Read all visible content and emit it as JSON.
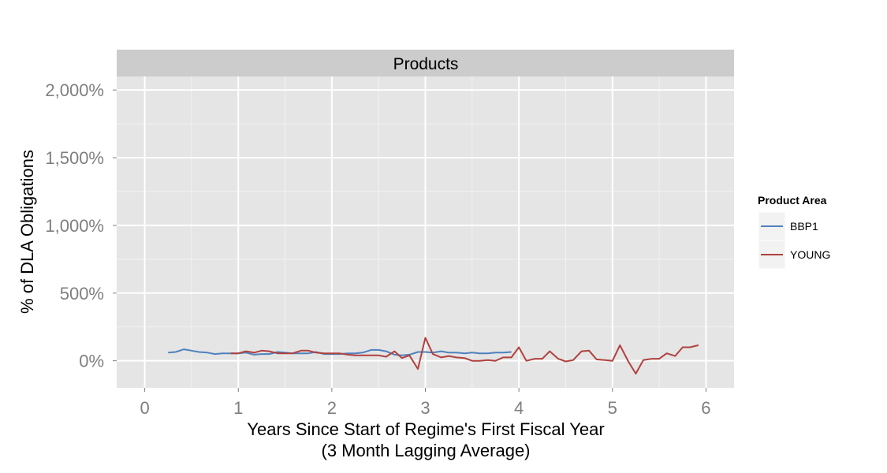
{
  "chart_data": {
    "type": "line",
    "facet_title": "Products",
    "xlabel_line1": "Years Since Start of Regime's First Fiscal Year",
    "xlabel_line2": "(3 Month Lagging Average)",
    "ylabel": "% of DLA Obligations",
    "xlim": [
      -0.3,
      6.3
    ],
    "ylim": [
      -200,
      2100
    ],
    "x_ticks": [
      0,
      1,
      2,
      3,
      4,
      5,
      6
    ],
    "x_tick_labels": [
      "0",
      "1",
      "2",
      "3",
      "4",
      "5",
      "6"
    ],
    "y_ticks": [
      0,
      500,
      1000,
      1500,
      2000
    ],
    "y_tick_labels": [
      "0%",
      "500%",
      "1,000%",
      "1,500%",
      "2,000%"
    ],
    "grid": true,
    "legend": {
      "title": "Product Area",
      "position": "right"
    },
    "series": [
      {
        "name": "BBP1",
        "color": "#4f81bd",
        "x": [
          0.25,
          0.33,
          0.42,
          0.5,
          0.58,
          0.67,
          0.75,
          0.83,
          0.92,
          1.0,
          1.08,
          1.17,
          1.25,
          1.33,
          1.42,
          1.5,
          1.58,
          1.67,
          1.75,
          1.83,
          1.92,
          2.0,
          2.08,
          2.17,
          2.25,
          2.33,
          2.42,
          2.5,
          2.58,
          2.67,
          2.75,
          2.83,
          2.92,
          3.0,
          3.08,
          3.17,
          3.25,
          3.33,
          3.42,
          3.5,
          3.58,
          3.67,
          3.75,
          3.83,
          3.92
        ],
        "y": [
          60,
          65,
          85,
          75,
          65,
          60,
          50,
          55,
          55,
          55,
          60,
          45,
          50,
          50,
          65,
          60,
          55,
          55,
          55,
          65,
          50,
          50,
          50,
          55,
          55,
          60,
          80,
          80,
          70,
          45,
          40,
          45,
          65,
          65,
          60,
          70,
          60,
          60,
          55,
          60,
          55,
          55,
          60,
          60,
          65
        ]
      },
      {
        "name": "YOUNG",
        "color": "#b0413e",
        "x": [
          0.92,
          1.0,
          1.08,
          1.17,
          1.25,
          1.33,
          1.42,
          1.5,
          1.58,
          1.67,
          1.75,
          1.83,
          1.92,
          2.0,
          2.08,
          2.17,
          2.25,
          2.33,
          2.42,
          2.5,
          2.58,
          2.67,
          2.75,
          2.83,
          2.92,
          3.0,
          3.08,
          3.17,
          3.25,
          3.33,
          3.42,
          3.5,
          3.58,
          3.67,
          3.75,
          3.83,
          3.92,
          4.0,
          4.08,
          4.17,
          4.25,
          4.33,
          4.42,
          4.5,
          4.58,
          4.67,
          4.75,
          4.83,
          4.92,
          5.0,
          5.08,
          5.17,
          5.25,
          5.33,
          5.42,
          5.5,
          5.58,
          5.67,
          5.75,
          5.83,
          5.92
        ],
        "y": [
          55,
          55,
          70,
          60,
          75,
          70,
          55,
          55,
          55,
          75,
          75,
          60,
          55,
          55,
          55,
          45,
          40,
          40,
          40,
          40,
          30,
          70,
          20,
          40,
          -60,
          170,
          50,
          25,
          35,
          25,
          20,
          0,
          0,
          5,
          0,
          25,
          25,
          100,
          0,
          15,
          15,
          70,
          15,
          -5,
          5,
          70,
          75,
          10,
          5,
          0,
          115,
          -5,
          -95,
          5,
          15,
          15,
          55,
          35,
          100,
          100,
          115
        ]
      }
    ]
  }
}
